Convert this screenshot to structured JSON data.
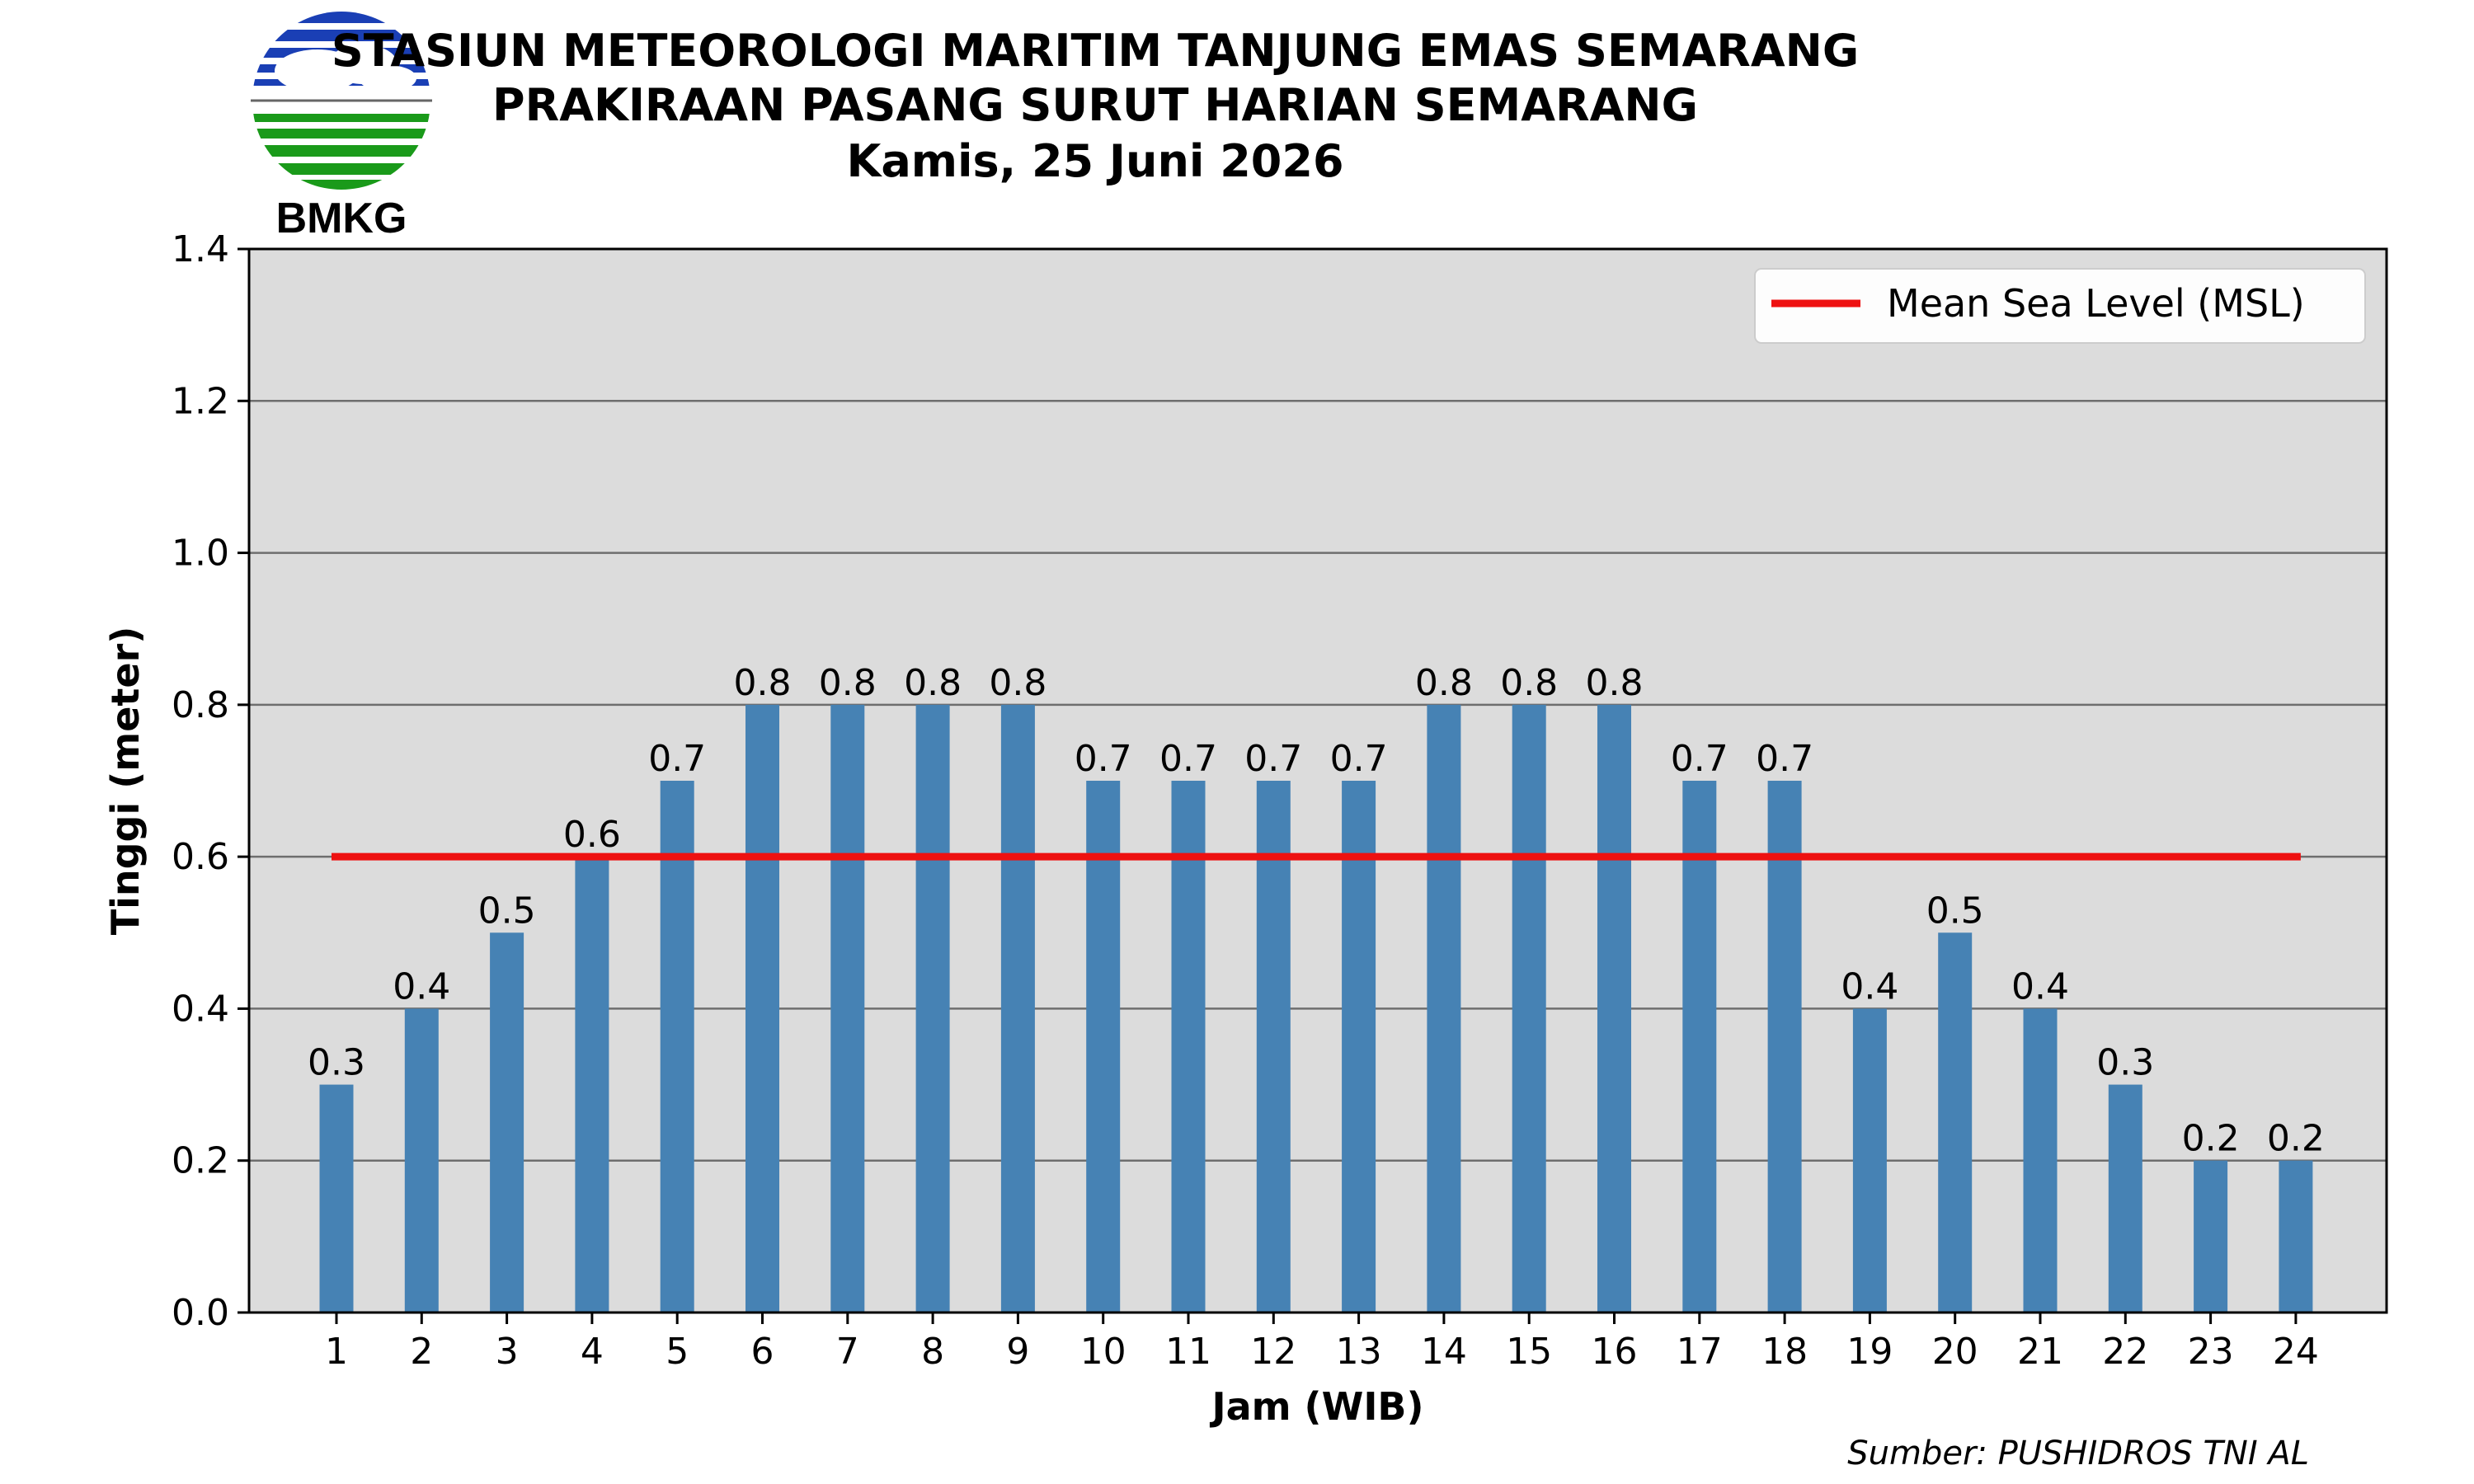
{
  "header": {
    "logo_text": "BMKG",
    "title_lines": [
      "STASIUN METEOROLOGI MARITIM TANJUNG EMAS SEMARANG",
      "PRAKIRAAN PASANG SURUT HARIAN SEMARANG",
      "Kamis, 25 Juni 2026"
    ]
  },
  "source": "Sumber: PUSHIDROS TNI AL",
  "chart_data": {
    "type": "bar",
    "xlabel": "Jam (WIB)",
    "ylabel": "Tinggi (meter)",
    "ylim": [
      0,
      1.4
    ],
    "yticks": [
      "0.0",
      "0.2",
      "0.4",
      "0.6",
      "0.8",
      "1.0",
      "1.2",
      "1.4"
    ],
    "categories": [
      "1",
      "2",
      "3",
      "4",
      "5",
      "6",
      "7",
      "8",
      "9",
      "10",
      "11",
      "12",
      "13",
      "14",
      "15",
      "16",
      "17",
      "18",
      "19",
      "20",
      "21",
      "22",
      "23",
      "24"
    ],
    "values": [
      0.3,
      0.4,
      0.5,
      0.6,
      0.7,
      0.8,
      0.8,
      0.8,
      0.8,
      0.7,
      0.7,
      0.7,
      0.7,
      0.8,
      0.8,
      0.8,
      0.7,
      0.7,
      0.4,
      0.5,
      0.4,
      0.3,
      0.2,
      0.2
    ],
    "data_labels": [
      "0.3",
      "0.4",
      "0.5",
      "0.6",
      "0.7",
      "0.8",
      "0.8",
      "0.8",
      "0.8",
      "0.7",
      "0.7",
      "0.7",
      "0.7",
      "0.8",
      "0.8",
      "0.8",
      "0.7",
      "0.7",
      "0.4",
      "0.5",
      "0.4",
      "0.3",
      "0.2",
      "0.2"
    ],
    "reference_line": {
      "name": "Mean Sea Level (MSL)",
      "value": 0.6,
      "color": "#ee1111"
    },
    "bar_color": "#4682b4",
    "plot_background": "#dcdcdc",
    "grid": "horizontal",
    "legend_position": "top-right"
  }
}
